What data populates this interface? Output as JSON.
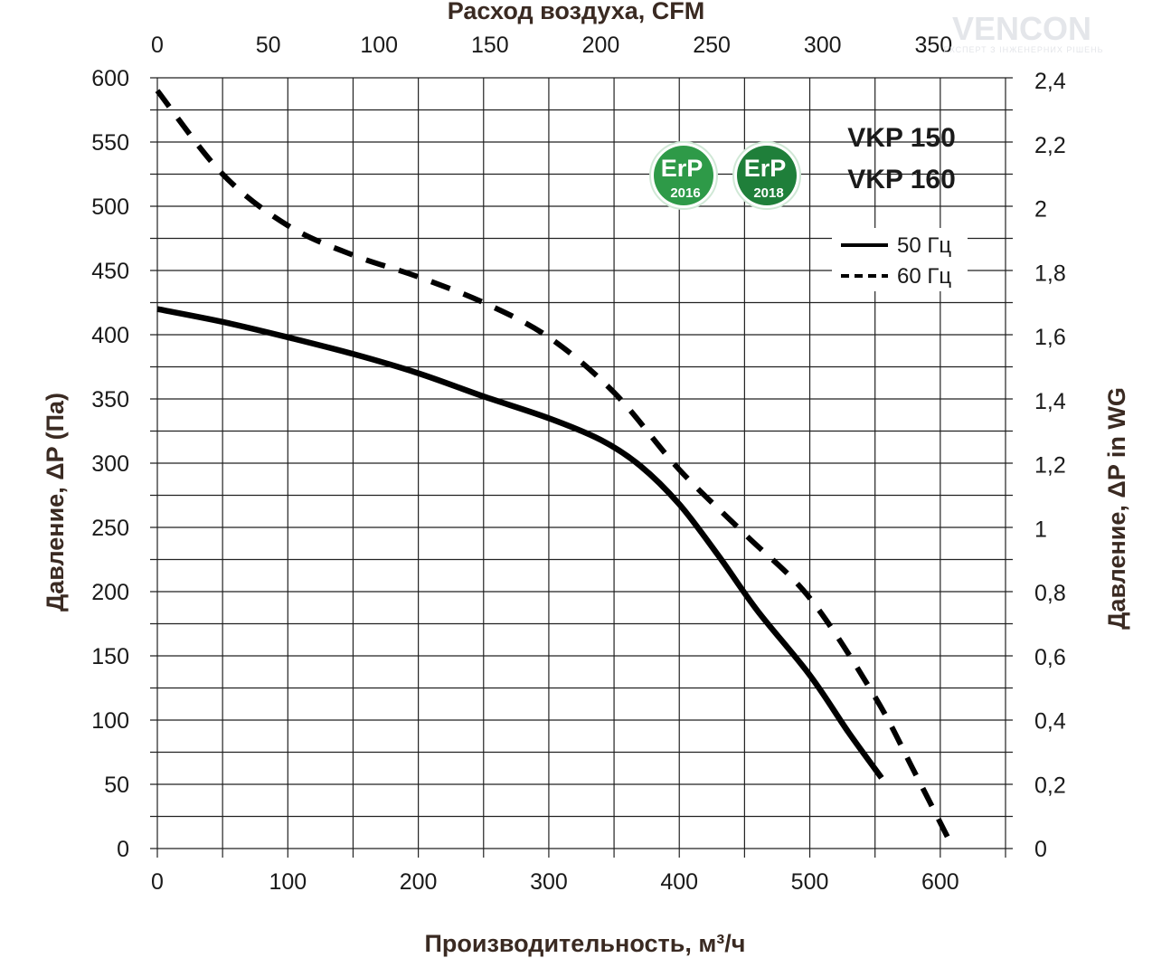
{
  "chart_data": {
    "type": "line",
    "title": "VKP 150 / VKP 160",
    "models": [
      "VKP 150",
      "VKP 160"
    ],
    "xlabel": "Производительность, м³/ч",
    "ylabel": "Давление, ΔP (Па)",
    "x2label": "Расход воздуха, CFM",
    "y2label": "Давление, ΔP in WG",
    "xlim": [
      0,
      650
    ],
    "ylim": [
      0,
      600
    ],
    "x2lim": [
      0,
      382.5
    ],
    "y2lim": [
      0,
      2.409
    ],
    "xticks": [
      "0",
      "100",
      "200",
      "300",
      "400",
      "500",
      "600"
    ],
    "yticks": [
      "0",
      "50",
      "100",
      "150",
      "200",
      "250",
      "300",
      "350",
      "400",
      "450",
      "500",
      "550",
      "600"
    ],
    "x2ticks": [
      "0",
      "50",
      "100",
      "150",
      "200",
      "250",
      "300",
      "350"
    ],
    "y2ticks": [
      "0",
      "0,2",
      "0,4",
      "0,6",
      "0,8",
      "1",
      "1,2",
      "1,4",
      "1,6",
      "1,8",
      "2",
      "2,2",
      "2,4"
    ],
    "grid": true,
    "legend_position": "top-right",
    "series": [
      {
        "name": "50 Гц",
        "style": "solid",
        "x": [
          0,
          50,
          100,
          150,
          200,
          250,
          300,
          340,
          370,
          400,
          430,
          460,
          500,
          530,
          555
        ],
        "y": [
          420,
          410,
          398,
          385,
          370,
          352,
          335,
          318,
          298,
          268,
          228,
          185,
          135,
          90,
          55
        ]
      },
      {
        "name": "60 Гц",
        "style": "dashed",
        "x": [
          0,
          50,
          100,
          150,
          200,
          250,
          300,
          350,
          400,
          450,
          500,
          550,
          580,
          610
        ],
        "y": [
          590,
          525,
          485,
          462,
          445,
          425,
          398,
          355,
          295,
          245,
          195,
          118,
          60,
          0
        ]
      }
    ],
    "badges": [
      {
        "text": "ErP",
        "year": "2016",
        "color": "#2e9a48"
      },
      {
        "text": "ErP",
        "year": "2018",
        "color": "#1f7f3a"
      }
    ],
    "watermark": {
      "brand": "VENCON",
      "tagline": "ЕКСПЕРТ З ІНЖЕНЕРНИХ РІШЕНЬ"
    }
  }
}
